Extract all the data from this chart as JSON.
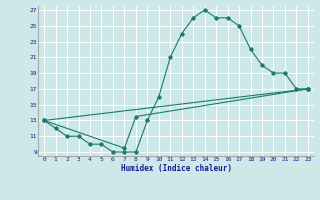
{
  "xlabel": "Humidex (Indice chaleur)",
  "bg_color": "#cce8e8",
  "grid_color": "#ffffff",
  "line_color": "#1a7a6e",
  "xlim": [
    -0.5,
    23.5
  ],
  "ylim": [
    8.5,
    27.5
  ],
  "xticks": [
    0,
    1,
    2,
    3,
    4,
    5,
    6,
    7,
    8,
    9,
    10,
    11,
    12,
    13,
    14,
    15,
    16,
    17,
    18,
    19,
    20,
    21,
    22,
    23
  ],
  "yticks": [
    9,
    11,
    13,
    15,
    17,
    19,
    21,
    23,
    25,
    27
  ],
  "curve1_x": [
    0,
    1,
    2,
    3,
    4,
    5,
    6,
    7,
    8,
    9,
    10,
    11,
    12,
    13,
    14,
    15,
    16,
    17,
    18,
    19,
    20,
    21,
    22,
    23
  ],
  "curve1_y": [
    13,
    12,
    11,
    11,
    10,
    10,
    9,
    9,
    9,
    13,
    16,
    21,
    24,
    26,
    27,
    26,
    26,
    25,
    22,
    20,
    19,
    19,
    17,
    17
  ],
  "curve2_x": [
    0,
    7,
    8,
    23
  ],
  "curve2_y": [
    13,
    9.5,
    13.5,
    17
  ],
  "curve3_x": [
    0,
    23
  ],
  "curve3_y": [
    13,
    17
  ]
}
